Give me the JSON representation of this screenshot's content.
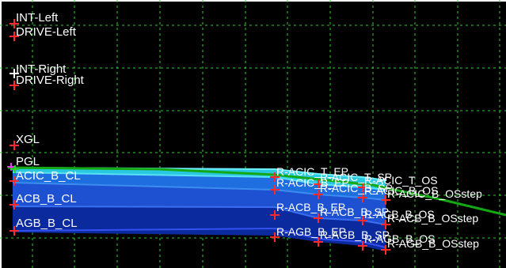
{
  "view": {
    "background_color": "#000000",
    "grid_color": "#2bd12b",
    "border_color": "#ffffff",
    "marker_color": "#ff2a2a",
    "layer_colors": {
      "asphalt": "#28c8e0",
      "acb": "#1e50d2",
      "agb": "#0a2a9e",
      "profile_line": "#14a814",
      "pgl_marker": "#e040e0",
      "int_right_marker": "#ffffff"
    }
  },
  "left_labels": {
    "int_left": "INT-Left",
    "drive_left": "DRIVE-Left",
    "int_right": "INT-Right",
    "drive_right": "DRIVE-Right",
    "xgl": "XGL",
    "pgl": "PGL",
    "acic_b_cl": "ACIC_B_CL",
    "acb_b_cl": "ACB_B_CL",
    "agb_b_cl": "AGB_B_CL"
  },
  "right_labels": {
    "r_acic_t_ep": "R-ACIC_T_EP",
    "r_acic_t_sp": "R-ACIC_T_SP",
    "r_acic_t_os": "R-ACIC_T_OS",
    "r_acic_b_ep": "R-ACIC_B_EP",
    "r_acic_b_sp": "R-ACIC_B_SP",
    "r_acic_b_os": "R-ACIC_B_OS",
    "r_acic_b_osstep": "R-ACIC_B_OSstep",
    "r_acb_b_ep": "R-ACB_B_EP",
    "r_acb_b_sp": "R-ACB_B_SP",
    "r_acb_b_os": "R-ACB_B_OS",
    "r_acb_b_osstep": "R-ACB_B_OSstep",
    "r_agb_b_ep": "R-AGB_B_EP",
    "r_agb_b_sp": "R-AGB_B_SP",
    "r_agb_b_os": "R-AGB_B_OS",
    "r_agb_b_osstep": "R-AGB_B_OSstep"
  }
}
